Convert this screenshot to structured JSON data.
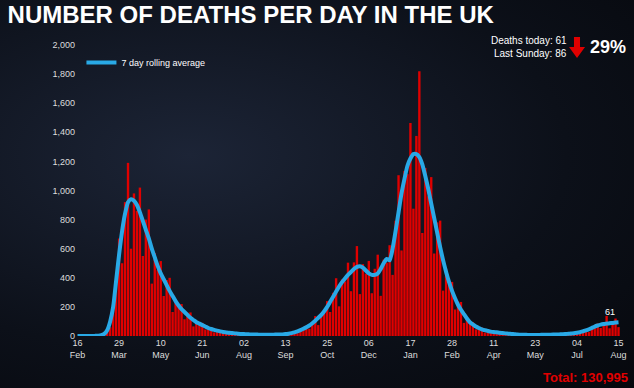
{
  "chart_data": {
    "type": "bar",
    "title": "NUMBER OF DEATHS PER DAY IN THE UK",
    "categories": [
      "16 Feb",
      null,
      null,
      null,
      null,
      null,
      null,
      null,
      null,
      null,
      null,
      null,
      null,
      null,
      "29 Mar",
      null,
      null,
      null,
      null,
      null,
      null,
      null,
      null,
      null,
      null,
      null,
      null,
      null,
      "10 May",
      null,
      null,
      null,
      null,
      null,
      null,
      null,
      null,
      null,
      null,
      null,
      null,
      null,
      "21 Jun",
      null,
      null,
      null,
      null,
      null,
      null,
      null,
      null,
      null,
      null,
      null,
      null,
      null,
      "02 Aug",
      null,
      null,
      null,
      null,
      null,
      null,
      null,
      null,
      null,
      null,
      null,
      null,
      null,
      "13 Sep",
      null,
      null,
      null,
      null,
      null,
      null,
      null,
      null,
      null,
      null,
      null,
      null,
      null,
      "25 Oct",
      null,
      null,
      null,
      null,
      null,
      null,
      null,
      null,
      null,
      null,
      null,
      null,
      null,
      "06 Dec",
      null,
      null,
      null,
      null,
      null,
      null,
      null,
      null,
      null,
      null,
      null,
      null,
      null,
      "17 Jan",
      null,
      null,
      null,
      null,
      null,
      null,
      null,
      null,
      null,
      null,
      null,
      null,
      null,
      "28 Feb",
      null,
      null,
      null,
      null,
      null,
      null,
      null,
      null,
      null,
      null,
      null,
      null,
      null,
      "11 Apr",
      null,
      null,
      null,
      null,
      null,
      null,
      null,
      null,
      null,
      null,
      null,
      null,
      null,
      "23 May",
      null,
      null,
      null,
      null,
      null,
      null,
      null,
      null,
      null,
      null,
      null,
      null,
      null,
      "04 Jul",
      null,
      null,
      null,
      null,
      null,
      null,
      null,
      null,
      null,
      null,
      null,
      null,
      null,
      "15 Aug"
    ],
    "values": [
      0,
      0,
      0,
      0,
      0,
      0,
      1,
      2,
      4,
      17,
      52,
      60,
      210,
      360,
      670,
      500,
      920,
      1190,
      600,
      980,
      860,
      1020,
      550,
      800,
      870,
      360,
      570,
      455,
      515,
      275,
      385,
      400,
      165,
      250,
      200,
      220,
      115,
      160,
      162,
      66,
      100,
      81,
      90,
      45,
      60,
      62,
      25,
      39,
      30,
      34,
      18,
      24,
      26,
      11,
      17,
      13,
      16,
      8,
      12,
      13,
      6,
      9,
      9,
      11,
      6,
      10,
      12,
      6,
      11,
      10,
      16,
      11,
      22,
      33,
      19,
      42,
      48,
      72,
      50,
      97,
      137,
      75,
      152,
      162,
      240,
      165,
      297,
      397,
      204,
      389,
      375,
      504,
      308,
      506,
      618,
      288,
      494,
      428,
      516,
      294,
      462,
      559,
      276,
      525,
      504,
      624,
      420,
      792,
      1105,
      588,
      1134,
      1112,
      1464,
      875,
      1375,
      1820,
      708,
      1155,
      960,
      1092,
      567,
      781,
      793,
      312,
      462,
      352,
      372,
      182,
      237,
      234,
      90,
      126,
      90,
      96,
      46,
      61,
      59,
      24,
      37,
      29,
      32,
      18,
      24,
      26,
      11,
      17,
      13,
      14,
      7,
      10,
      10,
      5,
      7,
      7,
      8,
      5,
      9,
      10,
      5,
      9,
      10,
      12,
      8,
      13,
      17,
      9,
      18,
      18,
      26,
      18,
      35,
      49,
      27,
      58,
      62,
      86,
      55,
      90,
      138,
      53,
      95,
      120,
      61
    ],
    "color": "#e00000",
    "series": [
      {
        "name": "7 day rolling average",
        "type": "line",
        "color": "#29a9e6",
        "values": [
          0,
          0,
          0,
          0,
          0,
          0,
          1,
          2,
          5,
          15,
          40,
          100,
          200,
          380,
          560,
          720,
          840,
          920,
          940,
          930,
          900,
          850,
          790,
          730,
          670,
          600,
          540,
          480,
          430,
          390,
          350,
          310,
          275,
          240,
          210,
          185,
          165,
          145,
          125,
          110,
          95,
          85,
          75,
          65,
          55,
          48,
          42,
          37,
          32,
          28,
          25,
          22,
          20,
          18,
          16,
          14,
          13,
          12,
          11,
          10,
          10,
          9,
          9,
          9,
          9,
          9,
          9,
          10,
          10,
          11,
          13,
          16,
          20,
          25,
          32,
          40,
          50,
          60,
          72,
          88,
          105,
          125,
          145,
          170,
          200,
          235,
          270,
          305,
          340,
          370,
          395,
          420,
          440,
          460,
          475,
          480,
          470,
          450,
          430,
          420,
          420,
          430,
          460,
          500,
          530,
          520,
          600,
          720,
          850,
          980,
          1080,
          1170,
          1220,
          1250,
          1250,
          1230,
          1180,
          1100,
          1010,
          910,
          810,
          710,
          610,
          520,
          440,
          370,
          310,
          260,
          215,
          180,
          150,
          120,
          95,
          80,
          65,
          55,
          45,
          40,
          35,
          30,
          27,
          25,
          22,
          20,
          18,
          16,
          14,
          12,
          10,
          9,
          8,
          8,
          7,
          7,
          7,
          7,
          8,
          8,
          8,
          9,
          10,
          10,
          11,
          12,
          13,
          15,
          17,
          19,
          22,
          26,
          32,
          38,
          45,
          55,
          65,
          72,
          78,
          82,
          85,
          88,
          90,
          93,
          95
        ]
      }
    ],
    "ylim": [
      0,
      2000
    ],
    "yticks": [
      0,
      200,
      400,
      600,
      800,
      {
        "value": 1000,
        "label": "1,000"
      },
      {
        "value": 1200,
        "label": "1,200"
      },
      {
        "value": 1400,
        "label": "1,400"
      },
      {
        "value": 1600,
        "label": "1,600"
      },
      {
        "value": 1800,
        "label": "1,800"
      },
      {
        "value": 2000,
        "label": "2,000"
      }
    ],
    "grid": false,
    "legend": "top-left",
    "annotations": [
      {
        "text": "Deaths today: 61"
      },
      {
        "text": "Last Sunday: 86"
      },
      {
        "text": "29%"
      },
      {
        "text": "Total: 130,995"
      },
      {
        "text": "61",
        "x": "15 Aug"
      }
    ]
  }
}
